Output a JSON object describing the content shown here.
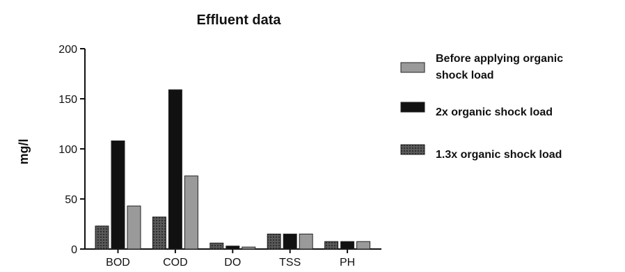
{
  "chart_data": {
    "type": "bar",
    "title": "Effluent data",
    "xlabel": "",
    "ylabel": "mg/l",
    "ylim": [
      0,
      200
    ],
    "yticks": [
      0,
      50,
      100,
      150,
      200
    ],
    "categories": [
      "BOD",
      "COD",
      "DO",
      "TSS",
      "PH"
    ],
    "series": [
      {
        "name": "1.3x organic shock load",
        "values": [
          23,
          32,
          6,
          15,
          7.5
        ],
        "color": "#5a5a5a",
        "pattern": "dotted"
      },
      {
        "name": "2x organic shock load",
        "values": [
          108,
          159,
          3,
          15,
          7.5
        ],
        "color": "#111111",
        "pattern": "solid"
      },
      {
        "name": "Before applying organic shock load",
        "values": [
          43,
          73,
          2,
          15,
          7.5
        ],
        "color": "#9a9a9a",
        "pattern": "solid"
      }
    ],
    "legend": {
      "placement": "right",
      "entries": [
        {
          "lines": [
            "Before applying organic",
            "shock load"
          ],
          "series": 2
        },
        {
          "lines": [
            "2x organic shock load"
          ],
          "series": 1
        },
        {
          "lines": [
            "1.3x organic shock load"
          ],
          "series": 0
        }
      ]
    },
    "grid": false
  }
}
